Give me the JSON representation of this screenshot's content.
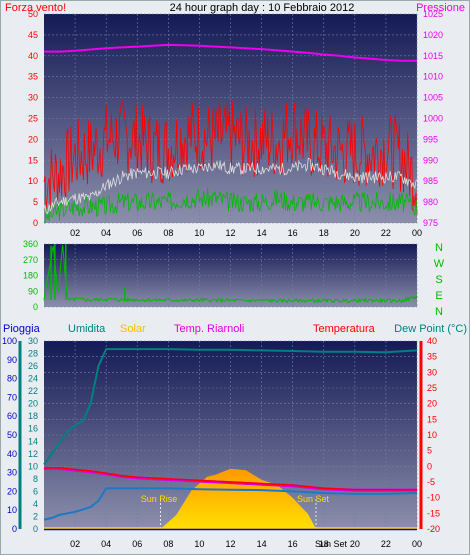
{
  "colors": {
    "wind": "#ff0000",
    "pressure": "#ee00ee",
    "gust_avg": "#dddddd",
    "wind_dir": "#00bb00",
    "humidity": "#008080",
    "solar": "#ffbb00",
    "riarnoli": "#dd00dd",
    "temperature": "#ff0000",
    "dewpoint": "#1e78c8",
    "rain": "#0000cc",
    "axis_text": "#000000",
    "grid": "#6f7fa6",
    "bg_top": "#141a55",
    "bg_bottom": "#8c8fab"
  },
  "top": {
    "title": "24 hour graph day : 10 Febbraio 2012",
    "left_label": "Forza vento!",
    "right_label": "Pressione"
  },
  "middle": {
    "compass": [
      "N",
      "W",
      "S",
      "E",
      "N"
    ]
  },
  "bottom": {
    "labels": {
      "rain": "Pioggia",
      "humidity": "Umidita",
      "solar": "Solar",
      "riarnoli": "Temp. Riarnoli",
      "temperature": "Temperatura",
      "dewpoint": "Dew Point (°C)"
    },
    "sun_rise": "Sun Rise",
    "sun_set": "Sun Set",
    "sun_set_tick": "Sun Set"
  },
  "chart_data": [
    {
      "type": "line",
      "xlabel": "",
      "ylabel": "Forza vento!",
      "x_ticks": [
        "02",
        "04",
        "06",
        "08",
        "10",
        "12",
        "14",
        "16",
        "18",
        "20",
        "22",
        "00"
      ],
      "xlim": [
        0,
        24
      ],
      "y_left_ticks": [
        0,
        5,
        10,
        15,
        20,
        25,
        30,
        35,
        40,
        45,
        50
      ],
      "ylim": [
        0,
        50
      ],
      "y_right_ticks": [
        975,
        980,
        985,
        990,
        995,
        1000,
        1005,
        1010,
        1015,
        1020,
        1025
      ],
      "y2lim": [
        975,
        1025
      ],
      "series": [
        {
          "name": "Pressione",
          "axis": "right",
          "x": [
            0,
            1,
            2,
            3,
            4,
            5,
            6,
            7,
            8,
            9,
            10,
            11,
            12,
            13,
            14,
            15,
            16,
            17,
            18,
            19,
            20,
            21,
            22,
            23,
            24
          ],
          "values": [
            1016,
            1016,
            1016.2,
            1016.5,
            1016.8,
            1017,
            1017.2,
            1017.4,
            1017.6,
            1017.5,
            1017.4,
            1017.2,
            1017,
            1016.8,
            1016.6,
            1016.3,
            1016,
            1015.7,
            1015.3,
            1015,
            1014.6,
            1014.3,
            1014,
            1013.8,
            1013.8
          ]
        },
        {
          "name": "Forza vento!",
          "axis": "left",
          "x": [
            0,
            1,
            2,
            3,
            4,
            5,
            6,
            7,
            8,
            9,
            10,
            11,
            12,
            13,
            14,
            15,
            16,
            17,
            18,
            19,
            20,
            21,
            22,
            23,
            24
          ],
          "values": [
            10,
            12,
            16,
            17,
            20,
            21,
            20,
            18,
            18,
            21,
            21,
            20,
            21,
            19,
            20,
            19,
            23,
            19,
            18,
            17,
            17,
            17,
            18,
            16,
            10
          ]
        },
        {
          "axis": "left",
          "x": [
            0,
            1,
            2,
            3,
            4,
            5,
            6,
            7,
            8,
            9,
            10,
            11,
            12,
            13,
            14,
            15,
            16,
            17,
            18,
            19,
            20,
            21,
            22,
            23,
            24
          ],
          "values": [
            3,
            5,
            6,
            6,
            9,
            11,
            12,
            12,
            12,
            13,
            13,
            14,
            13,
            13,
            13,
            13,
            13,
            14,
            13,
            12,
            11,
            11,
            11,
            11,
            9
          ]
        },
        {
          "axis": "left",
          "x": [
            0,
            1,
            2,
            3,
            4,
            5,
            6,
            7,
            8,
            9,
            10,
            11,
            12,
            13,
            14,
            15,
            16,
            17,
            18,
            19,
            20,
            21,
            22,
            23,
            24
          ],
          "values": [
            1,
            3,
            4,
            4,
            4,
            5,
            5,
            5,
            5,
            6,
            6,
            6,
            5,
            5,
            5,
            6,
            5,
            5,
            5,
            5,
            5,
            5,
            5,
            5,
            4
          ]
        }
      ]
    },
    {
      "type": "line",
      "ylabel": "",
      "y_ticks": [
        0,
        90,
        180,
        270,
        360
      ],
      "ylim": [
        0,
        360
      ],
      "series": [
        {
          "x": [
            0,
            0.3,
            0.6,
            0.9,
            1.2,
            1.5,
            2,
            3,
            4,
            5,
            6,
            7,
            8,
            9,
            10,
            11,
            12,
            13,
            14,
            15,
            16,
            17,
            18,
            19,
            20,
            21,
            22,
            23,
            24
          ],
          "values": [
            40,
            200,
            350,
            60,
            360,
            40,
            45,
            40,
            45,
            40,
            42,
            40,
            40,
            38,
            40,
            38,
            38,
            36,
            38,
            36,
            36,
            36,
            36,
            36,
            36,
            38,
            36,
            36,
            60
          ]
        }
      ]
    },
    {
      "type": "line",
      "x_ticks": [
        "02",
        "04",
        "06",
        "08",
        "10",
        "12",
        "14",
        "16",
        "18",
        "20",
        "22",
        "00"
      ],
      "x_tick_extra": "Sun Set",
      "xlim": [
        0,
        24
      ],
      "rain_ticks": [
        0,
        10,
        20,
        30,
        40,
        50,
        60,
        70,
        80,
        90,
        100
      ],
      "rain_lim": [
        0,
        100
      ],
      "humidity_ticks": [
        0,
        2,
        4,
        6,
        8,
        10,
        12,
        14,
        16,
        18,
        20,
        22,
        24,
        26,
        28,
        30
      ],
      "humidity_lim": [
        0,
        30
      ],
      "temp_ticks": [
        -20,
        -15,
        -10,
        -5,
        0,
        5,
        10,
        15,
        20,
        25,
        30,
        35,
        40
      ],
      "temp_lim": [
        -20,
        40
      ],
      "series": [
        {
          "name": "Umidita",
          "axis": "humidity",
          "x": [
            0,
            0.5,
            1,
            1.5,
            2,
            2.5,
            3,
            3.5,
            4,
            5,
            6,
            8,
            10,
            12,
            14,
            16,
            18,
            20,
            22,
            24
          ],
          "values": [
            10.3,
            12,
            13.8,
            15.5,
            16.6,
            17.2,
            20,
            26,
            28.7,
            28.7,
            28.7,
            28.7,
            28.6,
            28.6,
            28.5,
            28.4,
            28.3,
            28.3,
            28.2,
            28.5
          ]
        },
        {
          "name": "Temperatura",
          "axis": "temp",
          "x": [
            0,
            1,
            2,
            3,
            4,
            5,
            6,
            8,
            10,
            12,
            14,
            16,
            18,
            20,
            22,
            24
          ],
          "values": [
            -0.5,
            -0.5,
            -1,
            -1.5,
            -2.2,
            -3,
            -3.5,
            -4,
            -4.5,
            -5,
            -5.5,
            -6,
            -7,
            -7.5,
            -7.5,
            -7.5
          ]
        },
        {
          "name": "Temp. Riarnoli",
          "axis": "temp",
          "x": [
            0,
            1,
            2,
            3,
            4,
            5,
            6,
            8,
            10,
            12,
            14,
            16,
            18,
            20,
            22,
            24
          ],
          "values": [
            -0.7,
            -0.7,
            -1.2,
            -1.7,
            -2.4,
            -3.2,
            -3.7,
            -4.2,
            -4.7,
            -5.2,
            -5.7,
            -6.2,
            -7.2,
            -7.6,
            -7.6,
            -7.6
          ]
        },
        {
          "name": "Dew Point (°C)",
          "axis": "temp",
          "x": [
            0,
            0.5,
            1,
            2,
            3,
            3.5,
            4,
            6,
            8,
            10,
            12,
            14,
            16,
            18,
            20,
            22,
            24
          ],
          "values": [
            -17,
            -16.5,
            -15.5,
            -14.5,
            -13,
            -11,
            -7,
            -7,
            -7,
            -7.3,
            -7.5,
            -7.6,
            -8,
            -8.5,
            -8.8,
            -8.8,
            -8.5
          ]
        },
        {
          "name": "Solar",
          "axis": "solar",
          "x": [
            7.5,
            8.5,
            9.5,
            10.5,
            11,
            12,
            13,
            14,
            15,
            16,
            17,
            17.5
          ],
          "values": [
            0,
            8,
            20,
            26,
            30,
            32,
            30,
            28,
            24,
            16,
            6,
            0
          ]
        },
        {
          "name": "Pioggia",
          "axis": "rain",
          "x": [
            0,
            24
          ],
          "values": [
            0,
            0
          ]
        }
      ],
      "sun_rise_x": 7.5,
      "sun_set_x": 17.5
    }
  ]
}
